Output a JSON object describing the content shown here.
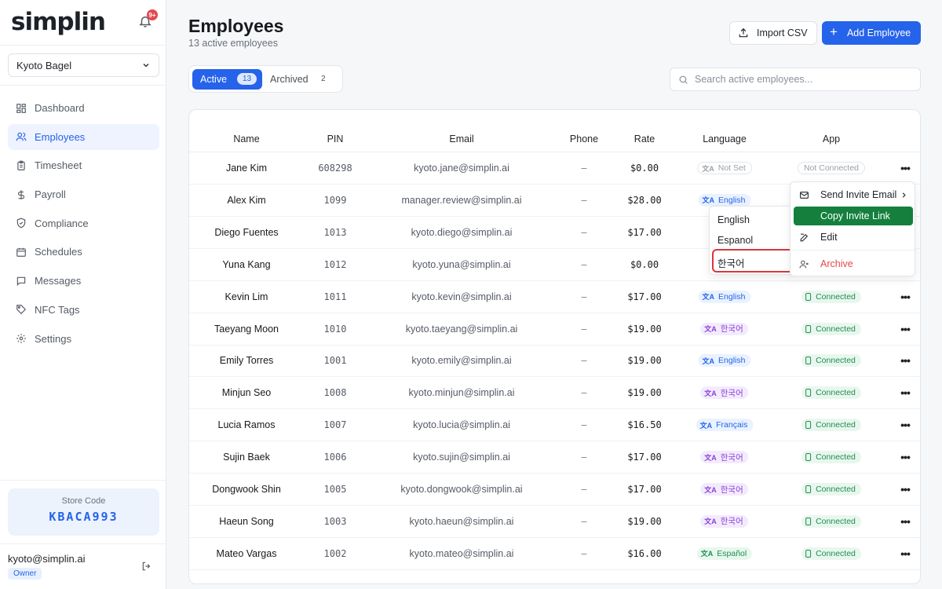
{
  "brand": {
    "logo": "simplin",
    "notifications": "9+"
  },
  "store_select": {
    "value": "Kyoto Bagel"
  },
  "nav": [
    {
      "label": "Dashboard",
      "icon": "dashboard-icon",
      "active": false
    },
    {
      "label": "Employees",
      "icon": "users-icon",
      "active": true
    },
    {
      "label": "Timesheet",
      "icon": "clipboard-icon",
      "active": false
    },
    {
      "label": "Payroll",
      "icon": "dollar-icon",
      "active": false
    },
    {
      "label": "Compliance",
      "icon": "shield-icon",
      "active": false
    },
    {
      "label": "Schedules",
      "icon": "calendar-icon",
      "active": false
    },
    {
      "label": "Messages",
      "icon": "message-icon",
      "active": false
    },
    {
      "label": "NFC Tags",
      "icon": "tag-icon",
      "active": false
    },
    {
      "label": "Settings",
      "icon": "gear-icon",
      "active": false
    }
  ],
  "store_code": {
    "label": "Store Code",
    "code": "KBACA993"
  },
  "user": {
    "email": "kyoto@simplin.ai",
    "role": "Owner"
  },
  "header": {
    "title": "Employees",
    "subtitle": "13 active employees",
    "import_label": "Import CSV",
    "add_label": "Add Employee"
  },
  "tabs": [
    {
      "label": "Active",
      "count": "13"
    },
    {
      "label": "Archived",
      "count": "2"
    }
  ],
  "search": {
    "placeholder": "Search active employees..."
  },
  "table": {
    "columns": [
      "Name",
      "PIN",
      "Email",
      "Phone",
      "Rate",
      "Language",
      "App"
    ],
    "rows": [
      {
        "name": "Jane Kim",
        "pin": "608298",
        "email": "kyoto.jane@simplin.ai",
        "phone": "–",
        "rate": "$0.00",
        "language": "Not Set",
        "lang_style": "gray",
        "app": "Not Connected"
      },
      {
        "name": "Alex Kim",
        "pin": "1099",
        "email": "manager.review@simplin.ai",
        "phone": "–",
        "rate": "$28.00",
        "language": "English",
        "lang_style": "blue",
        "app": ""
      },
      {
        "name": "Diego Fuentes",
        "pin": "1013",
        "email": "kyoto.diego@simplin.ai",
        "phone": "–",
        "rate": "$17.00",
        "language": "",
        "lang_style": "green",
        "app": ""
      },
      {
        "name": "Yuna Kang",
        "pin": "1012",
        "email": "kyoto.yuna@simplin.ai",
        "phone": "–",
        "rate": "$0.00",
        "language": "",
        "lang_style": "gray",
        "app": ""
      },
      {
        "name": "Kevin Lim",
        "pin": "1011",
        "email": "kyoto.kevin@simplin.ai",
        "phone": "–",
        "rate": "$17.00",
        "language": "English",
        "lang_style": "blue",
        "app": "Connected"
      },
      {
        "name": "Taeyang Moon",
        "pin": "1010",
        "email": "kyoto.taeyang@simplin.ai",
        "phone": "–",
        "rate": "$19.00",
        "language": "한국어",
        "lang_style": "purple",
        "app": "Connected"
      },
      {
        "name": "Emily Torres",
        "pin": "1001",
        "email": "kyoto.emily@simplin.ai",
        "phone": "–",
        "rate": "$19.00",
        "language": "English",
        "lang_style": "blue",
        "app": "Connected"
      },
      {
        "name": "Minjun Seo",
        "pin": "1008",
        "email": "kyoto.minjun@simplin.ai",
        "phone": "–",
        "rate": "$19.00",
        "language": "한국어",
        "lang_style": "purple",
        "app": "Connected"
      },
      {
        "name": "Lucia Ramos",
        "pin": "1007",
        "email": "kyoto.lucia@simplin.ai",
        "phone": "–",
        "rate": "$16.50",
        "language": "Français",
        "lang_style": "blue",
        "app": "Connected"
      },
      {
        "name": "Sujin Baek",
        "pin": "1006",
        "email": "kyoto.sujin@simplin.ai",
        "phone": "–",
        "rate": "$17.00",
        "language": "한국어",
        "lang_style": "purple",
        "app": "Connected"
      },
      {
        "name": "Dongwook Shin",
        "pin": "1005",
        "email": "kyoto.dongwook@simplin.ai",
        "phone": "–",
        "rate": "$17.00",
        "language": "한국어",
        "lang_style": "purple",
        "app": "Connected"
      },
      {
        "name": "Haeun Song",
        "pin": "1003",
        "email": "kyoto.haeun@simplin.ai",
        "phone": "–",
        "rate": "$19.00",
        "language": "한국어",
        "lang_style": "purple",
        "app": "Connected"
      },
      {
        "name": "Mateo Vargas",
        "pin": "1002",
        "email": "kyoto.mateo@simplin.ai",
        "phone": "–",
        "rate": "$16.00",
        "language": "Español",
        "lang_style": "green",
        "app": "Connected"
      }
    ]
  },
  "language_menu": {
    "options": [
      "English",
      "Espanol",
      "한국어"
    ],
    "highlighted": "한국어"
  },
  "action_menu": {
    "items": [
      {
        "label": "Send Invite Email",
        "icon": "mail-icon"
      },
      {
        "label": "Copy Invite Link",
        "icon": "link-icon"
      },
      {
        "label": "Edit",
        "icon": "edit-icon"
      },
      {
        "label": "Archive",
        "icon": "archive-user-icon"
      }
    ]
  }
}
